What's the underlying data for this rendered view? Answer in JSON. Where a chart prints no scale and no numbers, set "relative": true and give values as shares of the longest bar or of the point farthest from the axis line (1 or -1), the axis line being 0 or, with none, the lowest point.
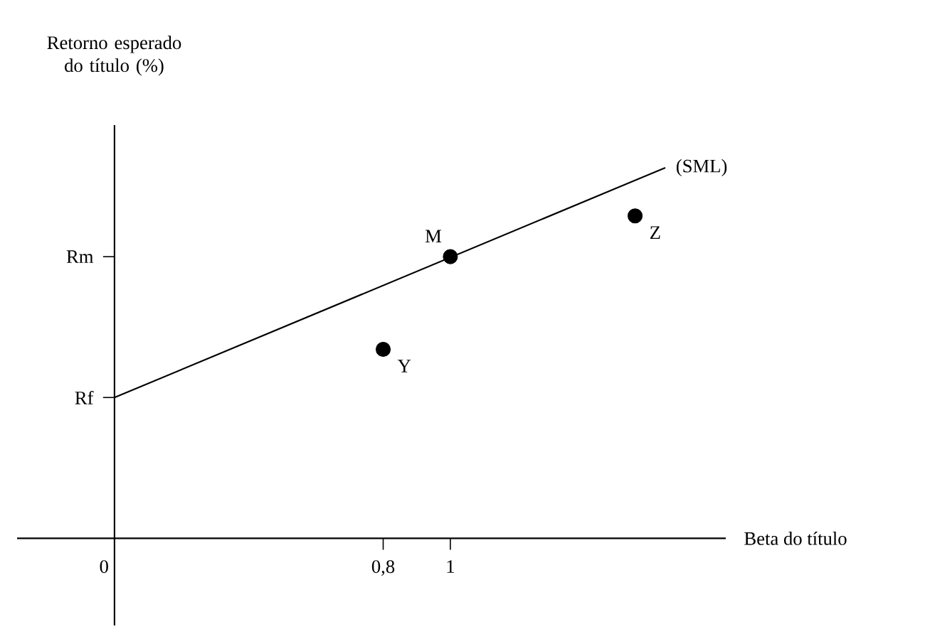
{
  "chart_data": {
    "type": "line",
    "xlabel": "Beta do título",
    "ylabel": "Retorno esperado do título (%)",
    "relative": true,
    "xlim": [
      -0.29,
      1.82
    ],
    "xticks": [
      0,
      {
        "value": 0.8,
        "label": "0,8"
      },
      1
    ],
    "series": [
      {
        "name": "(SML)",
        "color": "#000000",
        "x": [
          0,
          1.64
        ],
        "values": [
          0.38,
          1
        ],
        "marker": "none"
      },
      {
        "type": "scatter",
        "color": "#000000",
        "x": [
          0.8,
          1,
          1.55
        ],
        "values": [
          0.51,
          0.76,
          0.87
        ],
        "marker": "circle"
      }
    ],
    "ref_lines": [
      {
        "axis": "y",
        "value": 0.76,
        "label": "Rm"
      }
    ],
    "annotations": [
      {
        "text": "Rf",
        "x": 0,
        "y": 0.38
      },
      {
        "text": "M",
        "x": 1,
        "y": 0.76
      },
      {
        "text": "Y",
        "x": 0.8,
        "y": 0.51
      },
      {
        "text": "Z",
        "x": 1.55,
        "y": 0.87
      }
    ]
  }
}
